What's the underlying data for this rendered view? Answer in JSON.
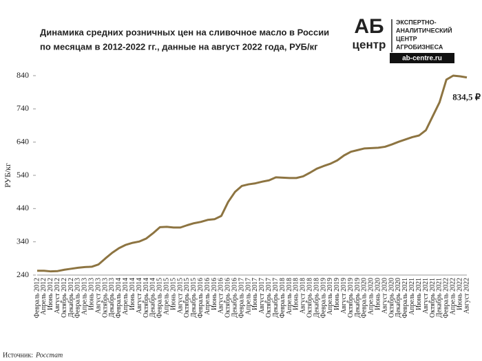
{
  "chart_data": {
    "type": "line",
    "title_lines": [
      "Динамика средних розничных цен на сливочное масло в России",
      "по месяцам в 2012-2022 гг., данные на август 2022 года, РУБ/кг"
    ],
    "ylabel": "РУБ/кг",
    "source_label": "Источник:",
    "source": "Росстат",
    "logo": {
      "mark_top": "АБ",
      "mark_bottom": "центр",
      "lines": [
        "ЭКСПЕРТНО-",
        "АНАЛИТИЧЕСКИЙ",
        "ЦЕНТР",
        "АГРОБИЗНЕСА"
      ],
      "url": "ab-centre.ru"
    },
    "categories": [
      "Февраль 2012",
      "Апрель 2012",
      "Июнь 2012",
      "Август 2012",
      "Октябрь 2012",
      "Декабрь 2012",
      "Февраль 2013",
      "Апрель 2013",
      "Июнь 2013",
      "Август 2013",
      "Октябрь 2013",
      "Декабрь 2013",
      "Февраль 2014",
      "Апрель 2014",
      "Июнь 2014",
      "Август 2014",
      "Октябрь 2014",
      "Декабрь 2014",
      "Февраль 2015",
      "Апрель 2015",
      "Июнь 2015",
      "Август 2015",
      "Октябрь 2015",
      "Декабрь 2015",
      "Февраль 2016",
      "Апрель 2016",
      "Июнь 2016",
      "Август 2016",
      "Октябрь 2016",
      "Декабрь 2016",
      "Февраль 2017",
      "Апрель 2017",
      "Июнь 2017",
      "Август 2017",
      "Октябрь 2017",
      "Декабрь 2017",
      "Февраль 2018",
      "Апрель 2018",
      "Июнь 2018",
      "Август 2018",
      "Октябрь 2018",
      "Декабрь 2018",
      "Февраль 2019",
      "Апрель 2019",
      "Июнь 2019",
      "Август 2019",
      "Октябрь 2019",
      "Декабрь 2019",
      "Февраль 2020",
      "Апрель 2020",
      "Июнь 2020",
      "Август 2020",
      "Октябрь 2020",
      "Декабрь 2020",
      "Февраль 2021",
      "Апрель 2021",
      "Июнь 2021",
      "Август 2021",
      "Октябрь 2021",
      "Декабрь 2021",
      "Февраль 2022",
      "Апрель 2022",
      "Июнь 2022",
      "Август 2022"
    ],
    "series": [
      {
        "name": "Цена",
        "color": "#8d7441",
        "values": [
          253,
          253,
          251,
          252,
          256,
          259,
          262,
          264,
          265,
          272,
          290,
          307,
          321,
          331,
          337,
          341,
          350,
          366,
          384,
          385,
          383,
          383,
          390,
          396,
          400,
          406,
          408,
          418,
          460,
          490,
          508,
          513,
          516,
          521,
          525,
          534,
          533,
          532,
          532,
          537,
          548,
          560,
          568,
          575,
          585,
          600,
          611,
          616,
          621,
          622,
          623,
          626,
          633,
          641,
          648,
          655,
          660,
          676,
          718,
          760,
          828,
          840,
          838,
          834.5
        ],
        "value_labels": [
          null,
          null,
          null,
          null,
          null,
          null,
          null,
          null,
          null,
          null,
          null,
          null,
          null,
          null,
          null,
          null,
          null,
          null,
          null,
          null,
          null,
          null,
          null,
          null,
          null,
          null,
          null,
          null,
          null,
          null,
          null,
          null,
          null,
          null,
          null,
          null,
          null,
          null,
          null,
          null,
          null,
          null,
          null,
          null,
          null,
          null,
          null,
          null,
          null,
          null,
          null,
          null,
          null,
          null,
          null,
          null,
          null,
          null,
          null,
          null,
          null,
          null,
          null,
          "834,5 ₽"
        ]
      }
    ],
    "ylim": [
      240,
      860
    ],
    "yticks": [
      240,
      340,
      440,
      540,
      640,
      740,
      840
    ]
  }
}
